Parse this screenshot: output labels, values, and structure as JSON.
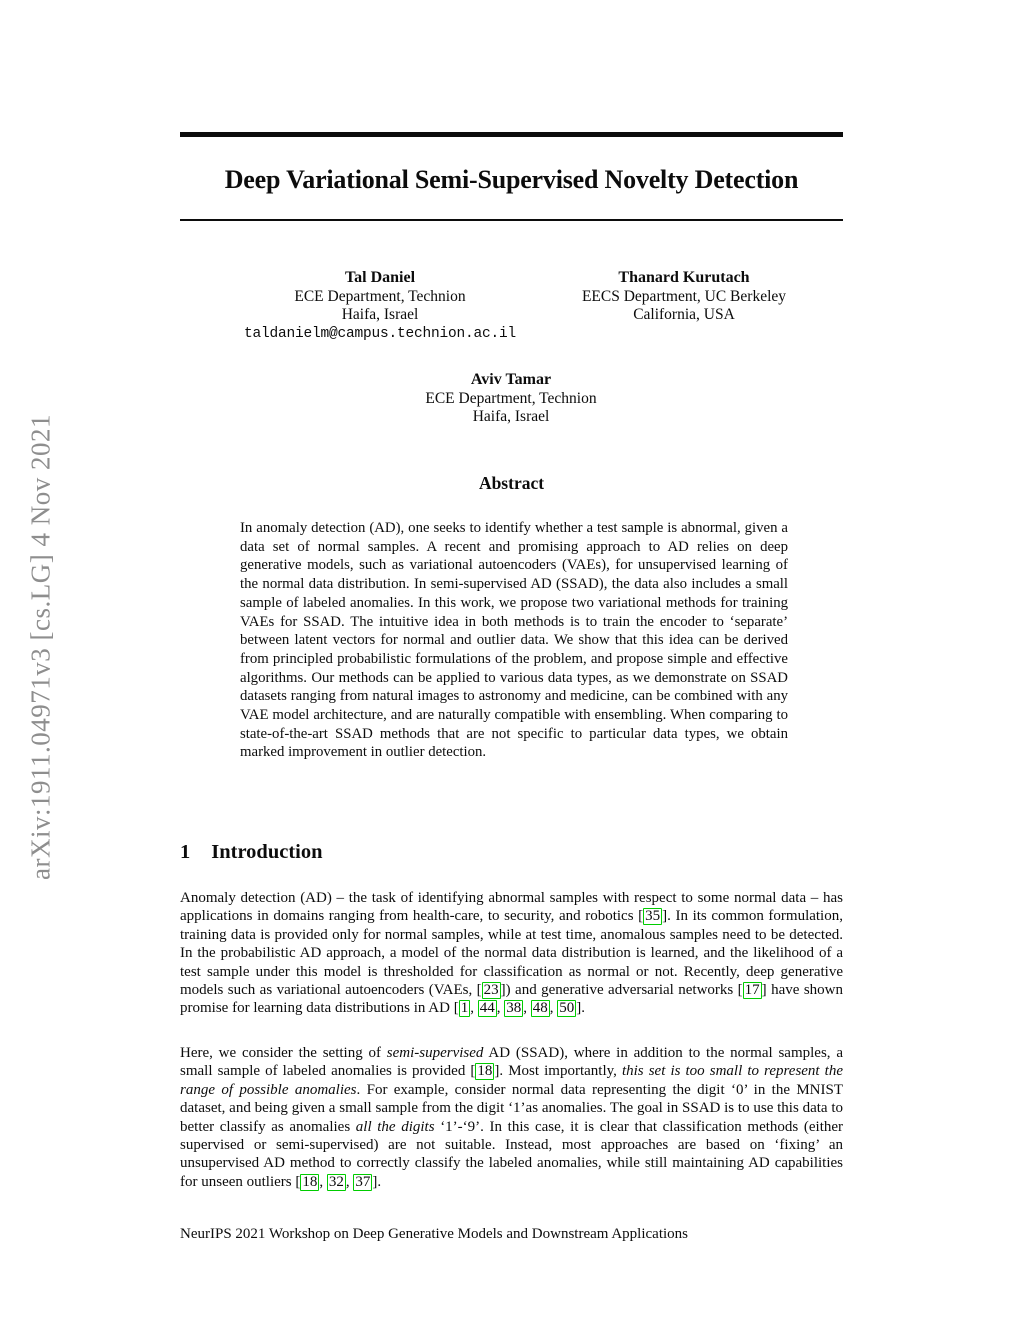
{
  "watermark": {
    "text": "arXiv:1911.04971v3  [cs.LG]  4 Nov 2021"
  },
  "title": "Deep Variational Semi-Supervised Novelty Detection",
  "authors": [
    {
      "name": "Tal Daniel",
      "affiliation_line1": "ECE Department, Technion",
      "affiliation_line2": "Haifa, Israel",
      "email": "taldanielm@campus.technion.ac.il"
    },
    {
      "name": "Thanard Kurutach",
      "affiliation_line1": "EECS Department, UC Berkeley",
      "affiliation_line2": "California, USA"
    },
    {
      "name": "Aviv Tamar",
      "affiliation_line1": "ECE Department, Technion",
      "affiliation_line2": "Haifa, Israel"
    }
  ],
  "abstract": {
    "heading": "Abstract",
    "text": "In anomaly detection (AD), one seeks to identify whether a test sample is abnormal, given a data set of normal samples. A recent and promising approach to AD relies on deep generative models, such as variational autoencoders (VAEs), for unsupervised learning of the normal data distribution. In semi-supervised AD (SSAD), the data also includes a small sample of labeled anomalies. In this work, we propose two variational methods for training VAEs for SSAD. The intuitive idea in both methods is to train the encoder to ‘separate’ between latent vectors for normal and outlier data. We show that this idea can be derived from principled probabilistic formulations of the problem, and propose simple and effective algorithms. Our methods can be applied to various data types, as we demonstrate on SSAD datasets ranging from natural images to astronomy and medicine, can be combined with any VAE model architecture, and are naturally compatible with ensembling. When comparing to state-of-the-art SSAD methods that are not specific to particular data types, we obtain marked improvement in outlier detection."
  },
  "introduction": {
    "number": "1",
    "heading": "Introduction",
    "paragraphs": [
      {
        "runs": [
          {
            "s": "plain",
            "t": "Anomaly detection (AD) – the task of identifying abnormal samples with respect to some normal data – has applications in domains ranging from health-care, to security, and robotics ["
          },
          {
            "s": "cite",
            "t": "35"
          },
          {
            "s": "plain",
            "t": "]. In its common formulation, training data is provided only for normal samples, while at test time, anomalous samples need to be detected. In the probabilistic AD approach, a model of the normal data distribution is learned, and the likelihood of a test sample under this model is thresholded for classification as normal or not. Recently, deep generative models such as variational autoencoders (VAEs, ["
          },
          {
            "s": "cite",
            "t": "23"
          },
          {
            "s": "plain",
            "t": "]) and generative adversarial networks ["
          },
          {
            "s": "cite",
            "t": "17"
          },
          {
            "s": "plain",
            "t": "] have shown promise for learning data distributions in AD ["
          },
          {
            "s": "cite",
            "t": "1"
          },
          {
            "s": "plain",
            "t": ", "
          },
          {
            "s": "cite",
            "t": "44"
          },
          {
            "s": "plain",
            "t": ", "
          },
          {
            "s": "cite",
            "t": "38"
          },
          {
            "s": "plain",
            "t": ", "
          },
          {
            "s": "cite",
            "t": "48"
          },
          {
            "s": "plain",
            "t": ", "
          },
          {
            "s": "cite",
            "t": "50"
          },
          {
            "s": "plain",
            "t": "]."
          }
        ]
      },
      {
        "runs": [
          {
            "s": "plain",
            "t": "Here, we consider the setting of "
          },
          {
            "s": "italic",
            "t": "semi-supervised"
          },
          {
            "s": "plain",
            "t": " AD (SSAD), where in addition to the normal samples, a small sample of labeled anomalies is provided ["
          },
          {
            "s": "cite",
            "t": "18"
          },
          {
            "s": "plain",
            "t": "]. Most importantly, "
          },
          {
            "s": "italic",
            "t": "this set is too small to represent the range of possible anomalies"
          },
          {
            "s": "plain",
            "t": ". For example, consider normal data representing the digit ‘0’ in the MNIST dataset, and being given a small sample from the digit ‘1’as anomalies. The goal in SSAD is to use this data to better classify as anomalies "
          },
          {
            "s": "italic",
            "t": "all the digits"
          },
          {
            "s": "plain",
            "t": " ‘1’-‘9’. In this case, it is clear that classification methods (either supervised or semi-supervised) are not suitable. Instead, most approaches are based on ‘fixing’ an unsupervised AD method to correctly classify the labeled anomalies, while still maintaining AD capabilities for unseen outliers ["
          },
          {
            "s": "cite",
            "t": "18"
          },
          {
            "s": "plain",
            "t": ", "
          },
          {
            "s": "cite",
            "t": "32"
          },
          {
            "s": "plain",
            "t": ", "
          },
          {
            "s": "cite",
            "t": "37"
          },
          {
            "s": "plain",
            "t": "]."
          }
        ]
      }
    ]
  },
  "footer": {
    "text": "NeurIPS 2021 Workshop on Deep Generative Models and Downstream Applications"
  },
  "colors": {
    "citation_box": "#00cc00",
    "watermark_gray": "#8e8e8e",
    "text_black": "#0c0c0c"
  }
}
